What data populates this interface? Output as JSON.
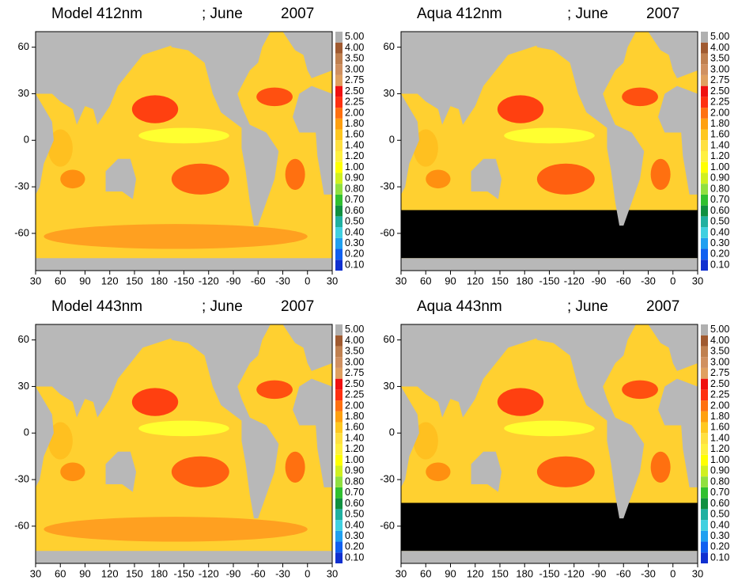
{
  "chart_data": [
    {
      "type": "map",
      "title": "Model 412nm",
      "month": "; June",
      "year": "2007",
      "masked_south": false,
      "xlim": [
        30,
        390
      ],
      "ylim": [
        -84,
        70
      ],
      "xticks": [
        30,
        60,
        90,
        120,
        150,
        180,
        {
          "value": 210,
          "label": "-150"
        },
        {
          "value": 240,
          "label": "-120"
        },
        {
          "value": 270,
          "label": "-90"
        },
        {
          "value": 300,
          "label": "-60"
        },
        {
          "value": 330,
          "label": "-30"
        },
        {
          "value": 360,
          "label": "0"
        },
        {
          "value": 390,
          "label": "30"
        }
      ],
      "yticks": [
        60,
        30,
        0,
        -30,
        -60
      ],
      "colorbar": {
        "levels": [
          {
            "value": 0.1,
            "label": "0.10"
          },
          {
            "value": 0.2,
            "label": "0.20"
          },
          {
            "value": 0.3,
            "label": "0.30"
          },
          {
            "value": 0.4,
            "label": "0.40"
          },
          {
            "value": 0.5,
            "label": "0.50"
          },
          {
            "value": 0.6,
            "label": "0.60"
          },
          {
            "value": 0.7,
            "label": "0.70"
          },
          {
            "value": 0.8,
            "label": "0.80"
          },
          {
            "value": 0.9,
            "label": "0.90"
          },
          {
            "value": 1,
            "label": "1.00"
          },
          {
            "value": 1.2,
            "label": "1.20"
          },
          {
            "value": 1.4,
            "label": "1.40"
          },
          {
            "value": 1.6,
            "label": "1.60"
          },
          {
            "value": 1.8,
            "label": "1.80"
          },
          {
            "value": 2,
            "label": "2.00"
          },
          {
            "value": 2.25,
            "label": "2.25"
          },
          {
            "value": 2.5,
            "label": "2.50"
          },
          {
            "value": 2.75,
            "label": "2.75"
          },
          {
            "value": 3,
            "label": "3.00"
          },
          {
            "value": 3.5,
            "label": "3.50"
          },
          {
            "value": 4,
            "label": "4.00"
          },
          {
            "value": 5,
            "label": "5.00"
          }
        ],
        "colors": [
          "#1030d0",
          "#1060f0",
          "#20a0f0",
          "#40d0e0",
          "#20b0a0",
          "#109040",
          "#30c030",
          "#90e040",
          "#d0f020",
          "#ffff00",
          "#fff040",
          "#ffe040",
          "#ffc820",
          "#ffa010",
          "#ff7010",
          "#ff3010",
          "#f01010",
          "#e0a060",
          "#d09060",
          "#c08050",
          "#a05a30",
          "#b0b0b0"
        ]
      }
    },
    {
      "type": "map",
      "title": "Aqua 412nm",
      "month": "; June",
      "year": "2007",
      "masked_south": true,
      "xlim": [
        30,
        390
      ],
      "ylim": [
        -84,
        70
      ],
      "xticks": [
        30,
        60,
        90,
        120,
        150,
        180,
        {
          "value": 210,
          "label": "-150"
        },
        {
          "value": 240,
          "label": "-120"
        },
        {
          "value": 270,
          "label": "-90"
        },
        {
          "value": 300,
          "label": "-60"
        },
        {
          "value": 330,
          "label": "-30"
        },
        {
          "value": 360,
          "label": "0"
        },
        {
          "value": 390,
          "label": "30"
        }
      ],
      "yticks": [
        60,
        30,
        0,
        -30,
        -60
      ],
      "colorbar": {
        "levels": [
          {
            "value": 0.1,
            "label": "0.10"
          },
          {
            "value": 0.2,
            "label": "0.20"
          },
          {
            "value": 0.3,
            "label": "0.30"
          },
          {
            "value": 0.4,
            "label": "0.40"
          },
          {
            "value": 0.5,
            "label": "0.50"
          },
          {
            "value": 0.6,
            "label": "0.60"
          },
          {
            "value": 0.7,
            "label": "0.70"
          },
          {
            "value": 0.8,
            "label": "0.80"
          },
          {
            "value": 0.9,
            "label": "0.90"
          },
          {
            "value": 1,
            "label": "1.00"
          },
          {
            "value": 1.2,
            "label": "1.20"
          },
          {
            "value": 1.4,
            "label": "1.40"
          },
          {
            "value": 1.6,
            "label": "1.60"
          },
          {
            "value": 1.8,
            "label": "1.80"
          },
          {
            "value": 2,
            "label": "2.00"
          },
          {
            "value": 2.25,
            "label": "2.25"
          },
          {
            "value": 2.5,
            "label": "2.50"
          },
          {
            "value": 2.75,
            "label": "2.75"
          },
          {
            "value": 3,
            "label": "3.00"
          },
          {
            "value": 3.5,
            "label": "3.50"
          },
          {
            "value": 4,
            "label": "4.00"
          },
          {
            "value": 5,
            "label": "5.00"
          }
        ],
        "colors": [
          "#1030d0",
          "#1060f0",
          "#20a0f0",
          "#40d0e0",
          "#20b0a0",
          "#109040",
          "#30c030",
          "#90e040",
          "#d0f020",
          "#ffff00",
          "#fff040",
          "#ffe040",
          "#ffc820",
          "#ffa010",
          "#ff7010",
          "#ff3010",
          "#f01010",
          "#e0a060",
          "#d09060",
          "#c08050",
          "#a05a30",
          "#b0b0b0"
        ]
      }
    },
    {
      "type": "map",
      "title": "Model 443nm",
      "month": "; June",
      "year": "2007",
      "masked_south": false,
      "xlim": [
        30,
        390
      ],
      "ylim": [
        -84,
        70
      ],
      "xticks": [
        30,
        60,
        90,
        120,
        150,
        180,
        {
          "value": 210,
          "label": "-150"
        },
        {
          "value": 240,
          "label": "-120"
        },
        {
          "value": 270,
          "label": "-90"
        },
        {
          "value": 300,
          "label": "-60"
        },
        {
          "value": 330,
          "label": "-30"
        },
        {
          "value": 360,
          "label": "0"
        },
        {
          "value": 390,
          "label": "30"
        }
      ],
      "yticks": [
        60,
        30,
        0,
        -30,
        -60
      ],
      "colorbar": {
        "levels": [
          {
            "value": 0.1,
            "label": "0.10"
          },
          {
            "value": 0.2,
            "label": "0.20"
          },
          {
            "value": 0.3,
            "label": "0.30"
          },
          {
            "value": 0.4,
            "label": "0.40"
          },
          {
            "value": 0.5,
            "label": "0.50"
          },
          {
            "value": 0.6,
            "label": "0.60"
          },
          {
            "value": 0.7,
            "label": "0.70"
          },
          {
            "value": 0.8,
            "label": "0.80"
          },
          {
            "value": 0.9,
            "label": "0.90"
          },
          {
            "value": 1,
            "label": "1.00"
          },
          {
            "value": 1.2,
            "label": "1.20"
          },
          {
            "value": 1.4,
            "label": "1.40"
          },
          {
            "value": 1.6,
            "label": "1.60"
          },
          {
            "value": 1.8,
            "label": "1.80"
          },
          {
            "value": 2,
            "label": "2.00"
          },
          {
            "value": 2.25,
            "label": "2.25"
          },
          {
            "value": 2.5,
            "label": "2.50"
          },
          {
            "value": 2.75,
            "label": "2.75"
          },
          {
            "value": 3,
            "label": "3.00"
          },
          {
            "value": 3.5,
            "label": "3.50"
          },
          {
            "value": 4,
            "label": "4.00"
          },
          {
            "value": 5,
            "label": "5.00"
          }
        ],
        "colors": [
          "#1030d0",
          "#1060f0",
          "#20a0f0",
          "#40d0e0",
          "#20b0a0",
          "#109040",
          "#30c030",
          "#90e040",
          "#d0f020",
          "#ffff00",
          "#fff040",
          "#ffe040",
          "#ffc820",
          "#ffa010",
          "#ff7010",
          "#ff3010",
          "#f01010",
          "#e0a060",
          "#d09060",
          "#c08050",
          "#a05a30",
          "#b0b0b0"
        ]
      }
    },
    {
      "type": "map",
      "title": "Aqua 443nm",
      "month": "; June",
      "year": "2007",
      "masked_south": true,
      "xlim": [
        30,
        390
      ],
      "ylim": [
        -84,
        70
      ],
      "xticks": [
        30,
        60,
        90,
        120,
        150,
        180,
        {
          "value": 210,
          "label": "-150"
        },
        {
          "value": 240,
          "label": "-120"
        },
        {
          "value": 270,
          "label": "-90"
        },
        {
          "value": 300,
          "label": "-60"
        },
        {
          "value": 330,
          "label": "-30"
        },
        {
          "value": 360,
          "label": "0"
        },
        {
          "value": 390,
          "label": "30"
        }
      ],
      "yticks": [
        60,
        30,
        0,
        -30,
        -60
      ],
      "colorbar": {
        "levels": [
          {
            "value": 0.1,
            "label": "0.10"
          },
          {
            "value": 0.2,
            "label": "0.20"
          },
          {
            "value": 0.3,
            "label": "0.30"
          },
          {
            "value": 0.4,
            "label": "0.40"
          },
          {
            "value": 0.5,
            "label": "0.50"
          },
          {
            "value": 0.6,
            "label": "0.60"
          },
          {
            "value": 0.7,
            "label": "0.70"
          },
          {
            "value": 0.8,
            "label": "0.80"
          },
          {
            "value": 0.9,
            "label": "0.90"
          },
          {
            "value": 1,
            "label": "1.00"
          },
          {
            "value": 1.2,
            "label": "1.20"
          },
          {
            "value": 1.4,
            "label": "1.40"
          },
          {
            "value": 1.6,
            "label": "1.60"
          },
          {
            "value": 1.8,
            "label": "1.80"
          },
          {
            "value": 2,
            "label": "2.00"
          },
          {
            "value": 2.25,
            "label": "2.25"
          },
          {
            "value": 2.5,
            "label": "2.50"
          },
          {
            "value": 2.75,
            "label": "2.75"
          },
          {
            "value": 3,
            "label": "3.00"
          },
          {
            "value": 3.5,
            "label": "3.50"
          },
          {
            "value": 4,
            "label": "4.00"
          },
          {
            "value": 5,
            "label": "5.00"
          }
        ],
        "colors": [
          "#1030d0",
          "#1060f0",
          "#20a0f0",
          "#40d0e0",
          "#20b0a0",
          "#109040",
          "#30c030",
          "#90e040",
          "#d0f020",
          "#ffff00",
          "#fff040",
          "#ffe040",
          "#ffc820",
          "#ffa010",
          "#ff7010",
          "#ff3010",
          "#f01010",
          "#e0a060",
          "#d09060",
          "#c08050",
          "#a05a30",
          "#b0b0b0"
        ]
      }
    }
  ]
}
